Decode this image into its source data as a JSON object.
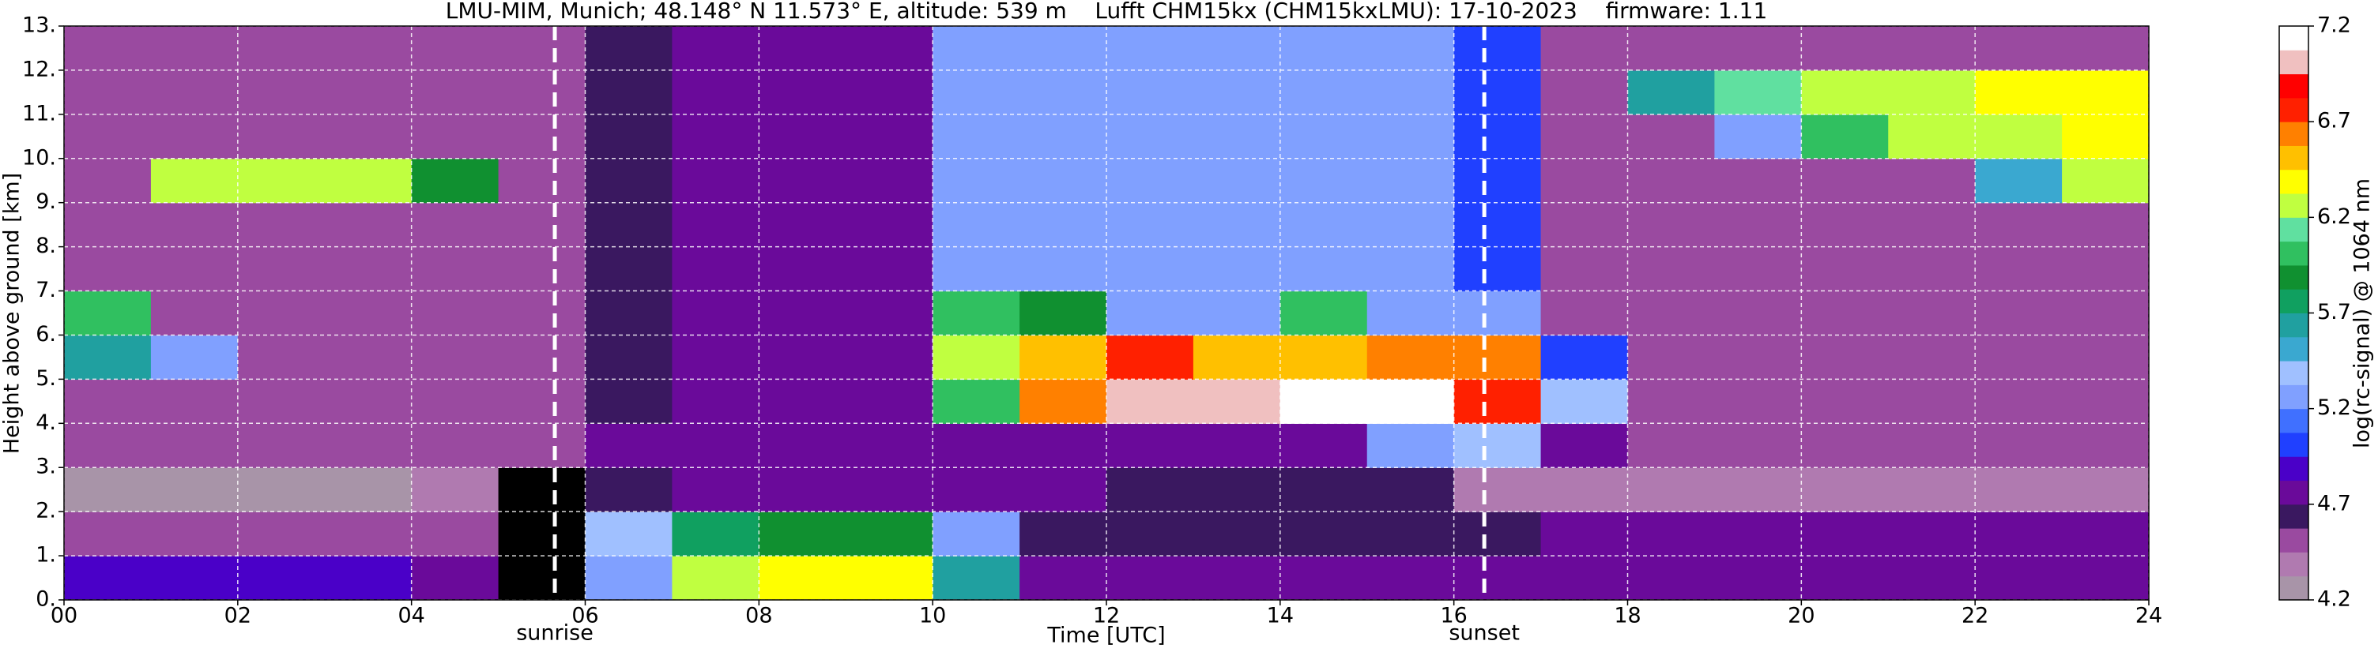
{
  "chart_data": {
    "type": "heatmap",
    "title": "LMU-MIM, Munich; 48.148° N 11.573° E, altitude: 539 m    Lufft CHM15kx (CHM15kxLMU): 17-10-2023    firmware: 1.11",
    "xlabel": "Time [UTC]",
    "ylabel": "Height above ground [km]",
    "colorbar_label": "log(rc-signal) @ 1064 nm",
    "x_edges": [
      0,
      1,
      2,
      3,
      4,
      5,
      6,
      7,
      8,
      9,
      10,
      11,
      12,
      13,
      14,
      15,
      16,
      17,
      18,
      19,
      20,
      21,
      22,
      23,
      24
    ],
    "y_edges": [
      0,
      1,
      2,
      3,
      4,
      5,
      6,
      7,
      8,
      9,
      10,
      11,
      12,
      13
    ],
    "values": [
      [
        4.9,
        4.9,
        4.9,
        4.9,
        4.8,
        null,
        5.2,
        6.3,
        6.4,
        6.4,
        5.6,
        4.8,
        4.8,
        4.8,
        4.8,
        4.8,
        4.8,
        4.8,
        4.8,
        4.8,
        4.8,
        4.8,
        4.8,
        4.8
      ],
      [
        4.45,
        4.45,
        4.45,
        4.45,
        4.45,
        null,
        5.4,
        5.8,
        5.9,
        5.9,
        5.2,
        4.6,
        4.6,
        4.6,
        4.6,
        4.6,
        4.65,
        4.7,
        4.7,
        4.7,
        4.7,
        4.7,
        4.7,
        4.7
      ],
      [
        4.3,
        4.3,
        4.3,
        4.3,
        4.35,
        null,
        4.6,
        4.7,
        4.7,
        4.7,
        4.7,
        4.7,
        4.6,
        4.6,
        4.6,
        4.6,
        4.4,
        4.35,
        4.35,
        4.35,
        4.35,
        4.35,
        4.35,
        4.35
      ],
      [
        4.55,
        4.55,
        4.55,
        4.55,
        4.55,
        4.55,
        4.7,
        4.75,
        4.75,
        4.75,
        4.75,
        4.75,
        4.75,
        4.75,
        4.75,
        5.3,
        5.4,
        4.8,
        4.55,
        4.55,
        4.55,
        4.55,
        4.55,
        4.55
      ],
      [
        4.55,
        4.55,
        4.55,
        4.55,
        4.55,
        4.55,
        4.6,
        4.75,
        4.75,
        4.75,
        6.0,
        6.6,
        7.0,
        7.0,
        7.1,
        7.1,
        6.8,
        5.4,
        4.55,
        4.55,
        4.55,
        4.55,
        4.55,
        4.55
      ],
      [
        5.6,
        5.2,
        4.55,
        4.55,
        4.55,
        4.55,
        4.6,
        4.75,
        4.75,
        4.75,
        6.3,
        6.5,
        6.7,
        6.5,
        6.5,
        6.6,
        6.6,
        5.0,
        4.55,
        4.55,
        4.55,
        4.55,
        4.55,
        4.55
      ],
      [
        6.0,
        4.55,
        4.55,
        4.55,
        4.55,
        4.55,
        4.6,
        4.75,
        4.75,
        4.75,
        6.0,
        5.9,
        5.3,
        5.3,
        6.0,
        5.3,
        5.2,
        4.55,
        4.55,
        4.55,
        4.55,
        4.55,
        4.55,
        4.55
      ],
      [
        4.55,
        4.55,
        4.55,
        4.55,
        4.55,
        4.55,
        4.6,
        4.75,
        4.75,
        4.75,
        5.3,
        5.3,
        5.3,
        5.3,
        5.3,
        5.3,
        5.0,
        4.55,
        4.55,
        4.55,
        4.55,
        4.55,
        4.55,
        4.55
      ],
      [
        4.55,
        4.55,
        4.55,
        4.55,
        4.55,
        4.55,
        4.6,
        4.75,
        4.75,
        4.75,
        5.3,
        5.3,
        5.3,
        5.3,
        5.3,
        5.3,
        5.0,
        4.55,
        4.55,
        4.55,
        4.55,
        4.55,
        4.55,
        4.55
      ],
      [
        4.55,
        6.2,
        6.2,
        6.3,
        5.9,
        4.55,
        4.6,
        4.75,
        4.75,
        4.75,
        5.3,
        5.3,
        5.3,
        5.3,
        5.3,
        5.3,
        5.0,
        4.55,
        4.55,
        4.55,
        4.55,
        4.55,
        5.5,
        6.2
      ],
      [
        4.55,
        4.55,
        4.55,
        4.55,
        4.55,
        4.55,
        4.6,
        4.75,
        4.75,
        4.75,
        5.3,
        5.3,
        5.3,
        5.3,
        5.3,
        5.3,
        5.0,
        4.55,
        4.55,
        5.2,
        6.0,
        6.2,
        6.3,
        6.4
      ],
      [
        4.55,
        4.55,
        4.55,
        4.55,
        4.55,
        4.55,
        4.6,
        4.75,
        4.75,
        4.75,
        5.3,
        5.3,
        5.3,
        5.3,
        5.3,
        5.3,
        5.0,
        4.55,
        5.6,
        6.1,
        6.2,
        6.3,
        6.4,
        6.4
      ],
      [
        4.55,
        4.55,
        4.55,
        4.55,
        4.55,
        4.55,
        4.6,
        4.75,
        4.75,
        4.75,
        5.3,
        5.3,
        5.3,
        5.3,
        5.3,
        5.3,
        5.0,
        4.55,
        4.55,
        4.55,
        4.55,
        4.55,
        4.55,
        4.55
      ]
    ],
    "missing_color": "#000000",
    "clim": [
      4.2,
      7.2
    ],
    "cticks": [
      4.2,
      4.7,
      5.2,
      5.7,
      6.2,
      6.7,
      7.2
    ],
    "colors": [
      "#a894a8",
      "#b07ab0",
      "#9a4aa0",
      "#3a1860",
      "#6a0a9a",
      "#4a00c8",
      "#2040ff",
      "#4070ff",
      "#80a0ff",
      "#a0c0ff",
      "#3aa8d0",
      "#20a0a0",
      "#10a060",
      "#109030",
      "#30c060",
      "#60e0a0",
      "#c0ff40",
      "#ffff00",
      "#ffc000",
      "#ff8000",
      "#ff2000",
      "#ff0000",
      "#f0c0c0",
      "#ffffff"
    ],
    "xlim": [
      0,
      24
    ],
    "ylim": [
      0,
      13
    ],
    "xticks": [
      {
        "value": 0,
        "label": "00"
      },
      {
        "value": 2,
        "label": "02"
      },
      {
        "value": 4,
        "label": "04"
      },
      {
        "value": 6,
        "label": "06"
      },
      {
        "value": 8,
        "label": "08"
      },
      10,
      12,
      14,
      16,
      18,
      20,
      22,
      24
    ],
    "yticks": [
      {
        "value": 0,
        "label": "0."
      },
      {
        "value": 1,
        "label": "1."
      },
      {
        "value": 2,
        "label": "2."
      },
      {
        "value": 3,
        "label": "3."
      },
      {
        "value": 4,
        "label": "4."
      },
      {
        "value": 5,
        "label": "5."
      },
      {
        "value": 6,
        "label": "6."
      },
      {
        "value": 7,
        "label": "7."
      },
      {
        "value": 8,
        "label": "8."
      },
      {
        "value": 9,
        "label": "9."
      },
      {
        "value": 10,
        "label": "10."
      },
      {
        "value": 11,
        "label": "11."
      },
      {
        "value": 12,
        "label": "12."
      },
      {
        "value": 13,
        "label": "13."
      }
    ],
    "grid": true,
    "markers": [
      {
        "x": 5.65,
        "label": "sunrise"
      },
      {
        "x": 16.35,
        "label": "sunset"
      }
    ]
  }
}
